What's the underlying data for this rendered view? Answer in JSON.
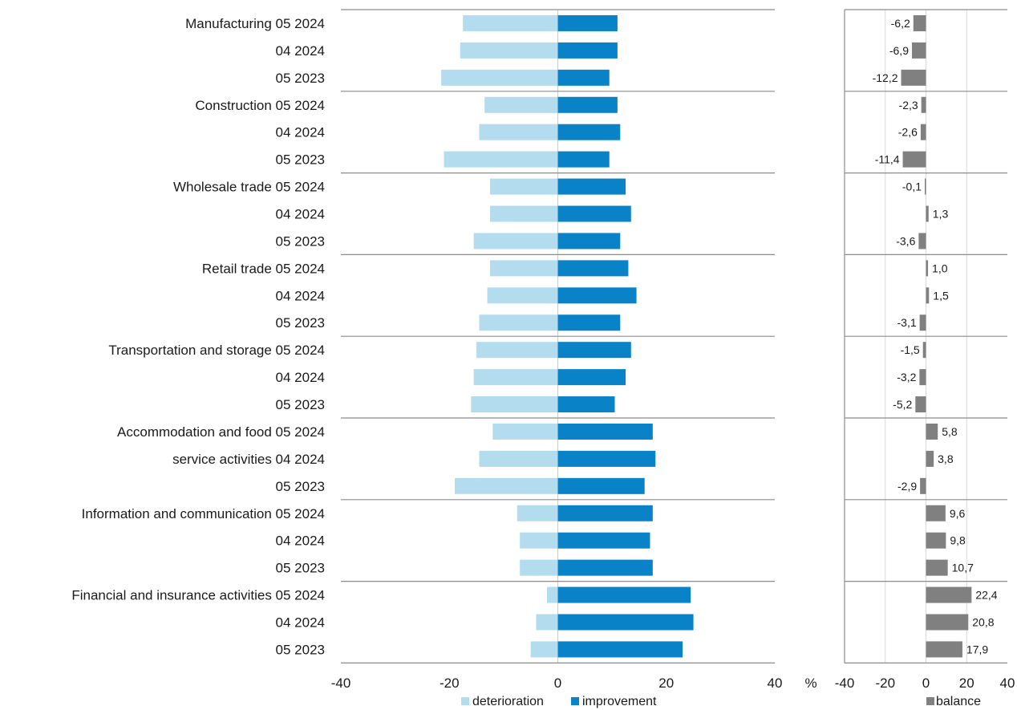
{
  "chart_data": [
    {
      "type": "bar",
      "orientation": "horizontal",
      "stacked": "diverging",
      "categories": [
        "Manufacturing 05 2024",
        "04 2024",
        "05 2023",
        "Construction 05 2024",
        "04 2024",
        "05 2023",
        "Wholesale trade 05 2024",
        "04 2024",
        "05 2023",
        "Retail trade 05 2024",
        "04 2024",
        "05 2023",
        "Transportation and storage 05 2024",
        "04 2024",
        "05 2023",
        "Accommodation and food 05 2024",
        "service activities  04 2024",
        "05 2023",
        "Information and communication 05 2024",
        "04 2024",
        "05 2023",
        "Financial and insurance activities 05 2024",
        "04 2024",
        "05 2023"
      ],
      "series": [
        {
          "name": "deterioration",
          "color": "#b3dcef",
          "values": [
            -17.5,
            -18.0,
            -21.5,
            -13.5,
            -14.5,
            -21.0,
            -12.5,
            -12.5,
            -15.5,
            -12.5,
            -13.0,
            -14.5,
            -15.0,
            -15.5,
            -16.0,
            -12.0,
            -14.5,
            -19.0,
            -7.5,
            -7.0,
            -7.0,
            -2.0,
            -4.0,
            -5.0
          ]
        },
        {
          "name": "improvement",
          "color": "#0a82c8",
          "values": [
            11.0,
            11.0,
            9.5,
            11.0,
            11.5,
            9.5,
            12.5,
            13.5,
            11.5,
            13.0,
            14.5,
            11.5,
            13.5,
            12.5,
            10.5,
            17.5,
            18.0,
            16.0,
            17.5,
            17.0,
            17.5,
            24.5,
            25.0,
            23.0
          ]
        }
      ],
      "xlim": [
        -40,
        40
      ],
      "xticks": [
        "-40",
        "-20",
        "0",
        "20",
        "40"
      ],
      "unit": "%",
      "group_separators_after": [
        2,
        5,
        8,
        11,
        14,
        17,
        20
      ],
      "legend": "bottom"
    },
    {
      "type": "bar",
      "orientation": "horizontal",
      "series": [
        {
          "name": "balance",
          "color": "#808080",
          "values": [
            -6.2,
            -6.9,
            -12.2,
            -2.3,
            -2.6,
            -11.4,
            -0.1,
            1.3,
            -3.6,
            1.0,
            1.5,
            -3.1,
            -1.5,
            -3.2,
            -5.2,
            5.8,
            3.8,
            -2.9,
            9.6,
            9.8,
            10.7,
            22.4,
            20.8,
            17.9
          ],
          "labels": [
            "-6,2",
            "-6,9",
            "-12,2",
            "-2,3",
            "-2,6",
            "-11,4",
            "-0,1",
            "1,3",
            "-3,6",
            "1,0",
            "1,5",
            "-3,1",
            "-1,5",
            "-3,2",
            "-5,2",
            "5,8",
            "3,8",
            "-2,9",
            "9,6",
            "9,8",
            "10,7",
            "22,4",
            "20,8",
            "17,9"
          ]
        }
      ],
      "xlim": [
        -40,
        40
      ],
      "xticks": [
        "-40",
        "-20",
        "0",
        "20",
        "40"
      ],
      "grid": true,
      "legend": "bottom"
    }
  ]
}
